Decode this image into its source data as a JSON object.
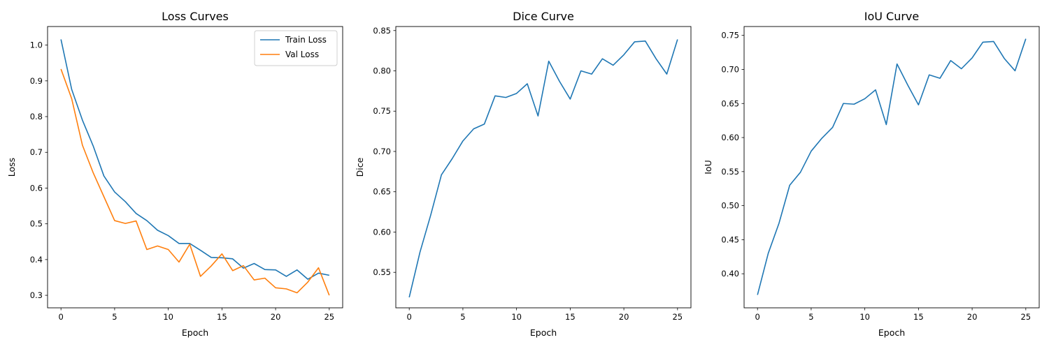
{
  "chart_data": [
    {
      "type": "line",
      "title": "Loss Curves",
      "xlabel": "Epoch",
      "ylabel": "Loss",
      "xlim": [
        -1.25,
        26.25
      ],
      "ylim": [
        0.265,
        1.052
      ],
      "xticks": [
        0,
        5,
        10,
        15,
        20,
        25
      ],
      "xtick_labels": [
        "0",
        "5",
        "10",
        "15",
        "20",
        "25"
      ],
      "yticks": [
        0.3,
        0.4,
        0.5,
        0.6,
        0.7,
        0.8,
        0.9,
        1.0
      ],
      "ytick_labels": [
        "0.3",
        "0.4",
        "0.5",
        "0.6",
        "0.7",
        "0.8",
        "0.9",
        "1.0"
      ],
      "grid": false,
      "legend": "top-right",
      "x": [
        0,
        1,
        2,
        3,
        4,
        5,
        6,
        7,
        8,
        9,
        10,
        11,
        12,
        13,
        14,
        15,
        16,
        17,
        18,
        19,
        20,
        21,
        22,
        23,
        24,
        25
      ],
      "series": [
        {
          "name": "Train Loss",
          "color": "#1f77b4",
          "values": [
            1.016,
            0.876,
            0.79,
            0.718,
            0.634,
            0.589,
            0.562,
            0.529,
            0.509,
            0.482,
            0.467,
            0.445,
            0.445,
            0.426,
            0.406,
            0.405,
            0.402,
            0.376,
            0.389,
            0.372,
            0.371,
            0.353,
            0.371,
            0.345,
            0.362,
            0.356
          ]
        },
        {
          "name": "Val Loss",
          "color": "#ff7f0e",
          "values": [
            0.933,
            0.85,
            0.72,
            0.643,
            0.576,
            0.509,
            0.501,
            0.508,
            0.428,
            0.438,
            0.428,
            0.393,
            0.443,
            0.353,
            0.382,
            0.416,
            0.369,
            0.383,
            0.343,
            0.348,
            0.321,
            0.318,
            0.307,
            0.337,
            0.377,
            0.3
          ]
        }
      ]
    },
    {
      "type": "line",
      "title": "Dice Curve",
      "xlabel": "Epoch",
      "ylabel": "Dice",
      "xlim": [
        -1.25,
        26.25
      ],
      "ylim": [
        0.506,
        0.855
      ],
      "xticks": [
        0,
        5,
        10,
        15,
        20,
        25
      ],
      "xtick_labels": [
        "0",
        "5",
        "10",
        "15",
        "20",
        "25"
      ],
      "yticks": [
        0.55,
        0.6,
        0.65,
        0.7,
        0.75,
        0.8,
        0.85
      ],
      "ytick_labels": [
        "0.55",
        "0.60",
        "0.65",
        "0.70",
        "0.75",
        "0.80",
        "0.85"
      ],
      "grid": false,
      "x": [
        0,
        1,
        2,
        3,
        4,
        5,
        6,
        7,
        8,
        9,
        10,
        11,
        12,
        13,
        14,
        15,
        16,
        17,
        18,
        19,
        20,
        21,
        22,
        23,
        24,
        25
      ],
      "series": [
        {
          "color": "#1f77b4",
          "values": [
            0.519,
            0.575,
            0.621,
            0.671,
            0.691,
            0.713,
            0.728,
            0.734,
            0.769,
            0.767,
            0.772,
            0.784,
            0.744,
            0.812,
            0.787,
            0.765,
            0.8,
            0.796,
            0.815,
            0.807,
            0.82,
            0.836,
            0.837,
            0.815,
            0.796,
            0.839
          ]
        }
      ]
    },
    {
      "type": "line",
      "title": "IoU Curve",
      "xlabel": "Epoch",
      "ylabel": "IoU",
      "xlim": [
        -1.25,
        26.25
      ],
      "ylim": [
        0.35,
        0.763
      ],
      "xticks": [
        0,
        5,
        10,
        15,
        20,
        25
      ],
      "xtick_labels": [
        "0",
        "5",
        "10",
        "15",
        "20",
        "25"
      ],
      "yticks": [
        0.4,
        0.45,
        0.5,
        0.55,
        0.6,
        0.65,
        0.7,
        0.75
      ],
      "ytick_labels": [
        "0.40",
        "0.45",
        "0.50",
        "0.55",
        "0.60",
        "0.65",
        "0.70",
        "0.75"
      ],
      "grid": false,
      "x": [
        0,
        1,
        2,
        3,
        4,
        5,
        6,
        7,
        8,
        9,
        10,
        11,
        12,
        13,
        14,
        15,
        16,
        17,
        18,
        19,
        20,
        21,
        22,
        23,
        24,
        25
      ],
      "series": [
        {
          "color": "#1f77b4",
          "values": [
            0.369,
            0.43,
            0.474,
            0.53,
            0.549,
            0.58,
            0.599,
            0.615,
            0.65,
            0.649,
            0.657,
            0.67,
            0.619,
            0.708,
            0.677,
            0.648,
            0.692,
            0.687,
            0.713,
            0.701,
            0.717,
            0.74,
            0.741,
            0.716,
            0.698,
            0.745
          ]
        }
      ]
    }
  ]
}
